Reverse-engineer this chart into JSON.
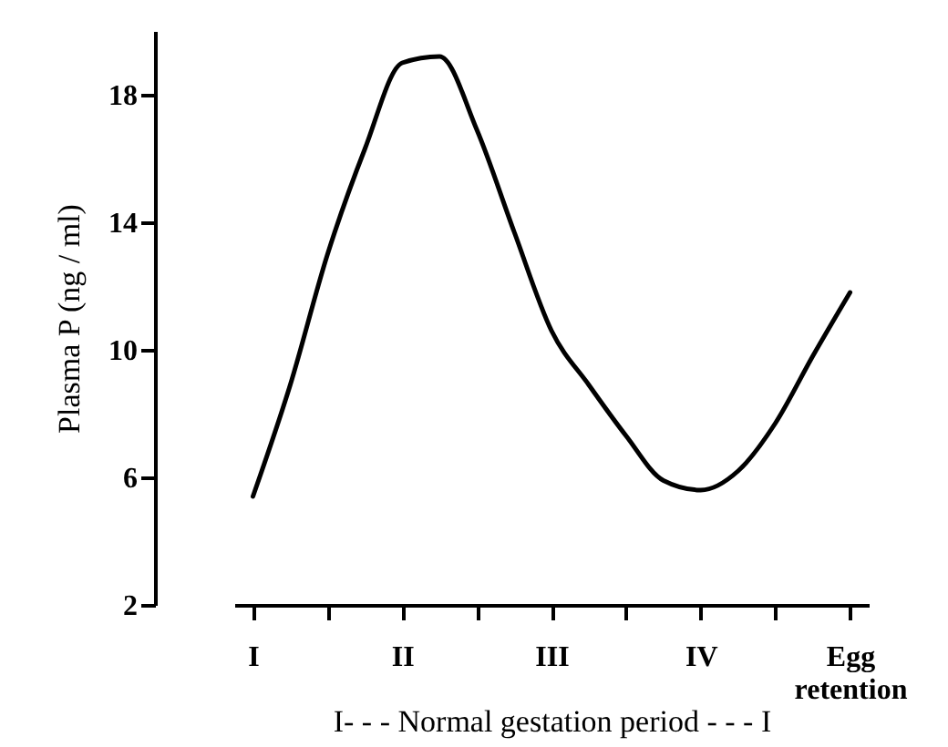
{
  "chart_data": {
    "type": "line",
    "xlabel": "I- - - Normal gestation period - - - I",
    "ylabel": "Plasma P (ng / ml)",
    "categories": [
      "I",
      null,
      null,
      null,
      "II",
      null,
      null,
      null,
      "III",
      null,
      null,
      null,
      "IV",
      null,
      null,
      null,
      "Egg retention"
    ],
    "ylim": [
      2,
      20
    ],
    "yticks": [
      2,
      6,
      10,
      14,
      18
    ],
    "grid": false,
    "series": [
      {
        "color": "#000000",
        "values": [
          5.4,
          8.9,
          13.0,
          16.3,
          19.0,
          19.2,
          16.9,
          13.7,
          10.6,
          8.9,
          7.3,
          5.9,
          5.6,
          6.2,
          7.7,
          9.8,
          11.8
        ]
      }
    ]
  }
}
